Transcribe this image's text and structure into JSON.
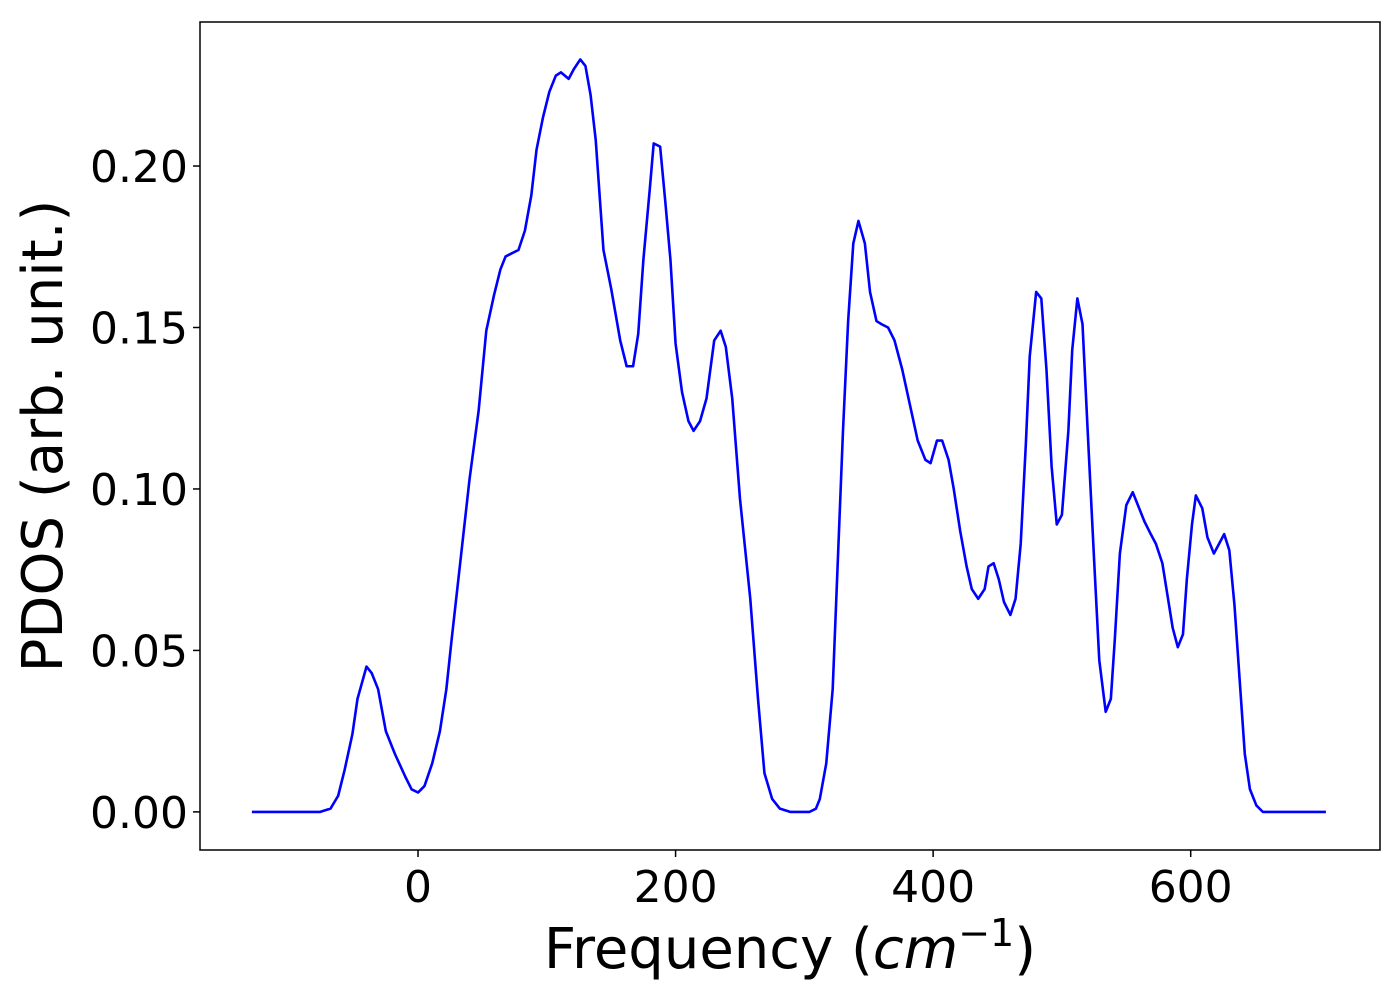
{
  "chart_data": {
    "type": "line",
    "x_label": [
      "Frequency (",
      "cm",
      "−1",
      ")"
    ],
    "y_label": "PDOS (arb. unit.)",
    "color": "#0000ff",
    "x": [
      -129,
      -76,
      -68,
      -62,
      -57,
      -51,
      -47,
      -40,
      -36,
      -31,
      -25,
      -18,
      -10,
      -5,
      0,
      5,
      11,
      17,
      22,
      26,
      33,
      40,
      47,
      53,
      59,
      64,
      68,
      73,
      78,
      83,
      88,
      92,
      97,
      102,
      107,
      111,
      117,
      121,
      126,
      130,
      134,
      138,
      144,
      150,
      157,
      162,
      167,
      171,
      175,
      180,
      183,
      188,
      192,
      196,
      200,
      205,
      210,
      214,
      219,
      224,
      230,
      235,
      239,
      244,
      250,
      258,
      264,
      269,
      275,
      281,
      289,
      304,
      309,
      312,
      317,
      322,
      326,
      330,
      334,
      338,
      342,
      347,
      351,
      356,
      360,
      365,
      370,
      376,
      382,
      388,
      394,
      398,
      403,
      407,
      412,
      416,
      421,
      426,
      430,
      435,
      440,
      443,
      447,
      451,
      455,
      460,
      464,
      468,
      472,
      475,
      480,
      484,
      488,
      492,
      496,
      500,
      505,
      508,
      512,
      516,
      520,
      525,
      529,
      534,
      538,
      541,
      545,
      550,
      555,
      559,
      564,
      569,
      573,
      578,
      582,
      586,
      590,
      594,
      597,
      601,
      604,
      609,
      613,
      618,
      622,
      626,
      630,
      634,
      638,
      642,
      646,
      651,
      656,
      705
    ],
    "values": [
      0,
      0,
      0.001,
      0.005,
      0.013,
      0.024,
      0.035,
      0.045,
      0.043,
      0.038,
      0.025,
      0.018,
      0.011,
      0.007,
      0.006,
      0.008,
      0.015,
      0.025,
      0.038,
      0.053,
      0.078,
      0.103,
      0.124,
      0.149,
      0.16,
      0.168,
      0.172,
      0.173,
      0.174,
      0.18,
      0.191,
      0.205,
      0.215,
      0.223,
      0.228,
      0.229,
      0.227,
      0.23,
      0.233,
      0.231,
      0.222,
      0.208,
      0.174,
      0.162,
      0.146,
      0.138,
      0.138,
      0.148,
      0.171,
      0.193,
      0.207,
      0.206,
      0.189,
      0.171,
      0.145,
      0.13,
      0.121,
      0.118,
      0.121,
      0.128,
      0.146,
      0.149,
      0.144,
      0.128,
      0.097,
      0.066,
      0.035,
      0.012,
      0.004,
      0.001,
      0,
      0,
      0.001,
      0.004,
      0.015,
      0.038,
      0.078,
      0.118,
      0.152,
      0.176,
      0.183,
      0.176,
      0.161,
      0.152,
      0.151,
      0.15,
      0.146,
      0.137,
      0.126,
      0.115,
      0.109,
      0.108,
      0.115,
      0.115,
      0.109,
      0.1,
      0.087,
      0.076,
      0.069,
      0.066,
      0.069,
      0.076,
      0.077,
      0.072,
      0.065,
      0.061,
      0.066,
      0.083,
      0.114,
      0.141,
      0.161,
      0.159,
      0.137,
      0.107,
      0.089,
      0.092,
      0.118,
      0.143,
      0.159,
      0.151,
      0.118,
      0.078,
      0.047,
      0.031,
      0.035,
      0.053,
      0.08,
      0.095,
      0.099,
      0.095,
      0.09,
      0.086,
      0.083,
      0.077,
      0.067,
      0.057,
      0.051,
      0.055,
      0.072,
      0.089,
      0.098,
      0.094,
      0.085,
      0.08,
      0.083,
      0.086,
      0.081,
      0.064,
      0.041,
      0.018,
      0.007,
      0.002,
      0,
      0
    ],
    "xlim": [
      -169.3,
      747
    ],
    "ylim": [
      -0.0118,
      0.2446
    ],
    "xticks": [
      0,
      200,
      400,
      600
    ],
    "yticks": [
      {
        "value": 0,
        "label": "0.00"
      },
      {
        "value": 0.05,
        "label": "0.05"
      },
      {
        "value": 0.1,
        "label": "0.10"
      },
      {
        "value": 0.15,
        "label": "0.15"
      },
      {
        "value": 0.2,
        "label": "0.20"
      }
    ]
  }
}
